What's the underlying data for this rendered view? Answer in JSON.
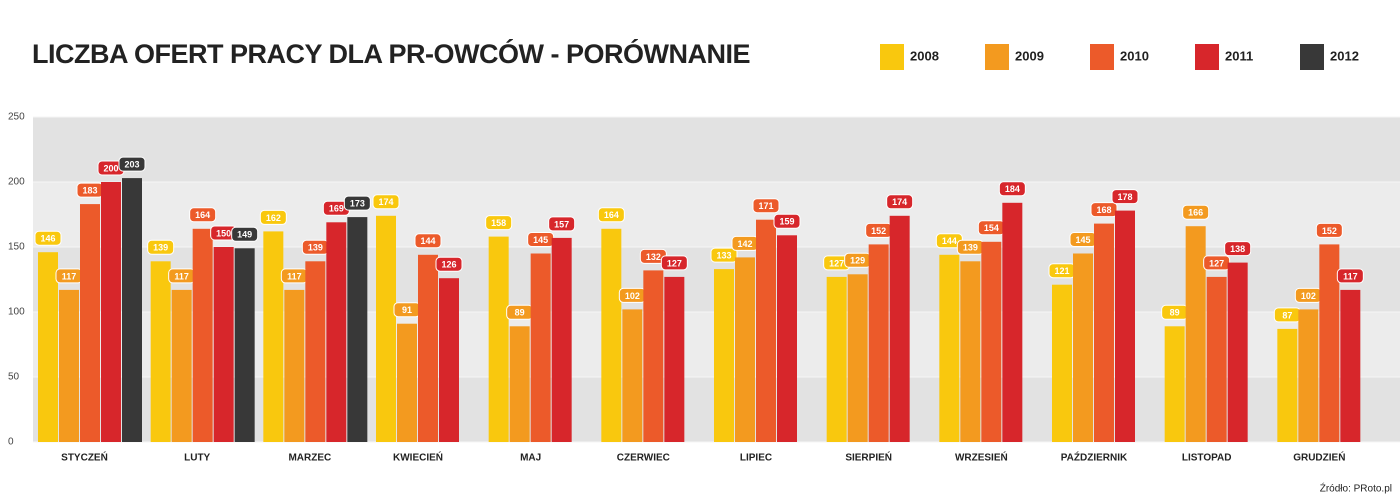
{
  "chart_data": {
    "type": "bar",
    "title": "LICZBA OFERT PRACY DLA PR-OWCÓW - PORÓWNANIE",
    "source": "Źródło: PRoto.pl",
    "categories": [
      "STYCZEŃ",
      "LUTY",
      "MARZEC",
      "KWIECIEŃ",
      "MAJ",
      "CZERWIEC",
      "LIPIEC",
      "SIERPIEŃ",
      "WRZESIEŃ",
      "PAŹDZIERNIK",
      "LISTOPAD",
      "GRUDZIEŃ"
    ],
    "series": [
      {
        "name": "2008",
        "color": "#f9c80e",
        "values": [
          146,
          139,
          162,
          174,
          158,
          164,
          133,
          127,
          144,
          121,
          89,
          87
        ]
      },
      {
        "name": "2009",
        "color": "#f39a1f",
        "values": [
          117,
          117,
          117,
          91,
          89,
          102,
          142,
          129,
          139,
          145,
          166,
          102
        ]
      },
      {
        "name": "2010",
        "color": "#ec5a2a",
        "values": [
          183,
          164,
          139,
          144,
          145,
          132,
          171,
          152,
          154,
          168,
          127,
          152
        ]
      },
      {
        "name": "2011",
        "color": "#d7262b",
        "values": [
          200,
          150,
          169,
          126,
          157,
          127,
          159,
          174,
          184,
          178,
          138,
          117
        ]
      },
      {
        "name": "2012",
        "color": "#383838",
        "values": [
          203,
          149,
          173,
          null,
          null,
          null,
          null,
          null,
          null,
          null,
          null,
          null
        ]
      }
    ],
    "ylim": [
      0,
      250
    ],
    "yticks": [
      0,
      50,
      100,
      150,
      200,
      250
    ],
    "grid": true,
    "legend": "top-right"
  }
}
